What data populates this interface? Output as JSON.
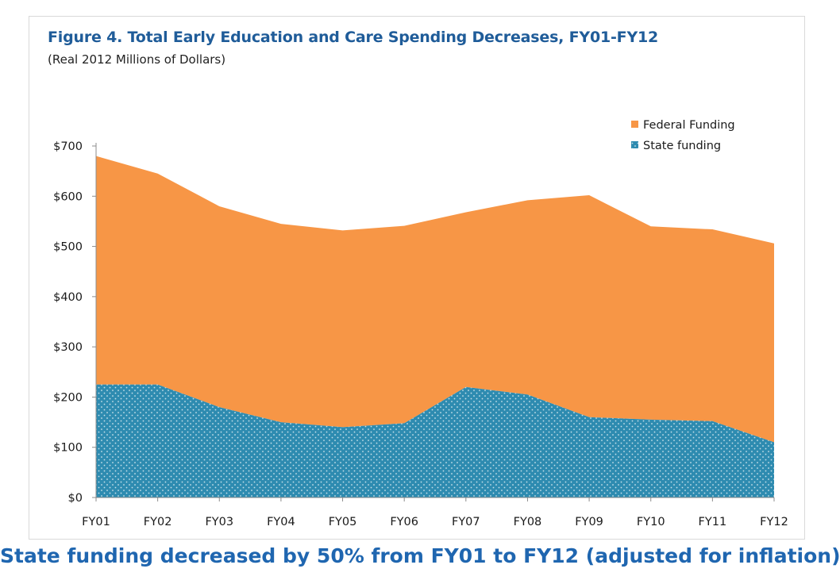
{
  "title": "Figure 4. Total Early Education and Care Spending Decreases, FY01-FY12",
  "subtitle": "(Real 2012  Millions of Dollars)",
  "caption": "State funding decreased by 50% from FY01 to FY12 (adjusted for inflation)",
  "colors": {
    "federal": "#f79646",
    "state": "#2e8bb0",
    "title": "#1f5c99",
    "caption": "#1f66b0"
  },
  "chart_data": {
    "type": "area",
    "stacked": true,
    "categories": [
      "FY01",
      "FY02",
      "FY03",
      "FY04",
      "FY05",
      "FY06",
      "FY07",
      "FY08",
      "FY09",
      "FY10",
      "FY11",
      "FY12"
    ],
    "series": [
      {
        "name": "State funding",
        "values": [
          225,
          225,
          180,
          150,
          140,
          148,
          220,
          205,
          160,
          155,
          152,
          110
        ]
      },
      {
        "name": "Federal Funding",
        "values": [
          455,
          420,
          400,
          395,
          392,
          393,
          348,
          387,
          442,
          385,
          382,
          396
        ]
      }
    ],
    "totals": [
      680,
      645,
      580,
      545,
      532,
      541,
      568,
      592,
      602,
      540,
      534,
      506
    ],
    "ylim": [
      0,
      700
    ],
    "yticks": [
      0,
      100,
      200,
      300,
      400,
      500,
      600,
      700
    ],
    "ytick_labels": [
      "$0",
      "$100",
      "$200",
      "$300",
      "$400",
      "$500",
      "$600",
      "$700"
    ],
    "legend_position": "top-right",
    "grid": false
  }
}
